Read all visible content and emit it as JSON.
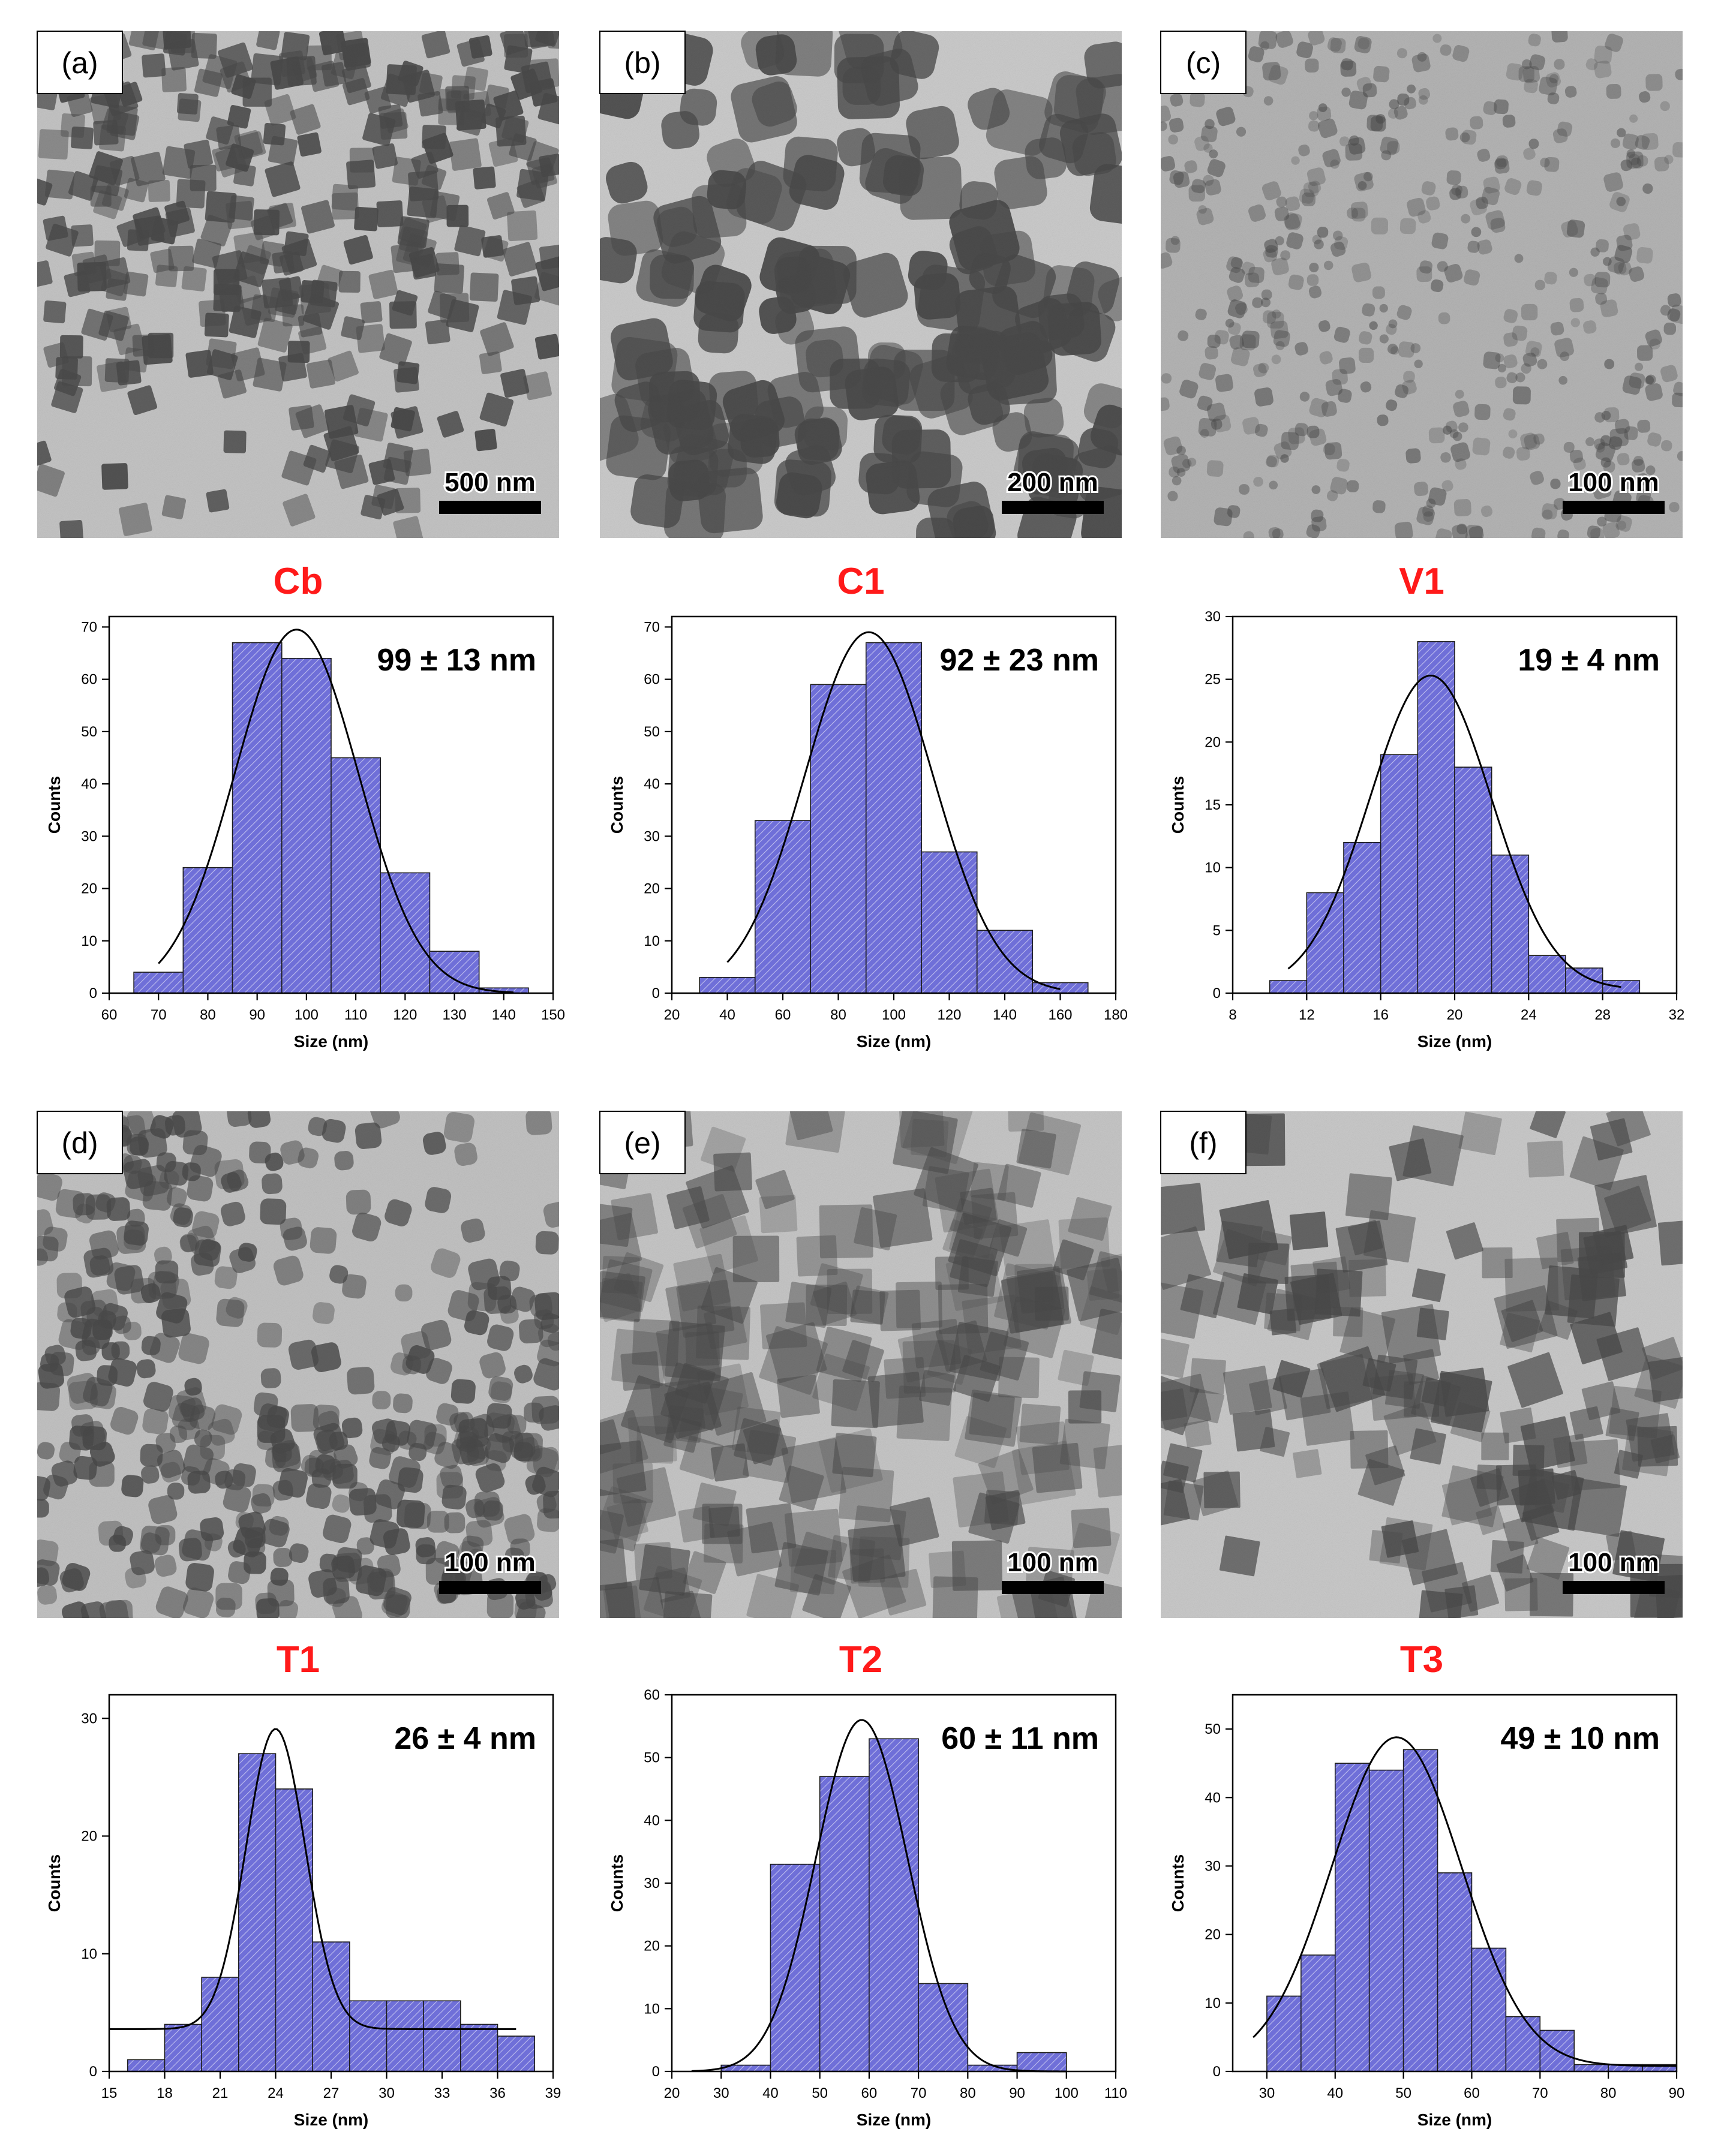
{
  "figure": {
    "axis_titles": {
      "x": "Size (nm)",
      "y": "Counts"
    },
    "colors": {
      "sample_label": "#ff1a1a",
      "bar_fill": "#6f6fd8",
      "bar_hatch": "#ffffff",
      "bar_edge": "#1c1c1c",
      "fit_line": "#000000",
      "axis": "#000000",
      "tem_background": "#b9b9b9",
      "tem_particle": "#4a4a4a"
    },
    "panels": [
      {
        "panel_label": "(a)",
        "sample": "Cb",
        "scale_bar": "500 nm",
        "tem_style": "large-cubes",
        "chart_data": {
          "type": "histogram-with-fit",
          "annotation": "99 ± 13 nm",
          "xlabel": "Size (nm)",
          "ylabel": "Counts",
          "xlim": [
            60,
            150
          ],
          "xticks": [
            60,
            70,
            80,
            90,
            100,
            110,
            120,
            130,
            140,
            150
          ],
          "ylim": [
            0,
            72
          ],
          "yticks": [
            0,
            10,
            20,
            30,
            40,
            50,
            60,
            70
          ],
          "bins": [
            [
              65,
              75,
              4
            ],
            [
              75,
              85,
              24
            ],
            [
              85,
              95,
              67
            ],
            [
              95,
              105,
              64
            ],
            [
              105,
              115,
              45
            ],
            [
              115,
              125,
              23
            ],
            [
              125,
              135,
              8
            ],
            [
              135,
              145,
              1
            ]
          ],
          "fit": {
            "center": 98,
            "sigma": 12.5,
            "amplitude": 69.5,
            "baseline": 0,
            "x_range": [
              70,
              142
            ]
          }
        }
      },
      {
        "panel_label": "(b)",
        "sample": "C1",
        "scale_bar": "200 nm",
        "tem_style": "rounded-cubes",
        "chart_data": {
          "type": "histogram-with-fit",
          "annotation": "92 ± 23 nm",
          "xlabel": "Size (nm)",
          "ylabel": "Counts",
          "xlim": [
            20,
            180
          ],
          "xticks": [
            20,
            40,
            60,
            80,
            100,
            120,
            140,
            160,
            180
          ],
          "ylim": [
            0,
            72
          ],
          "yticks": [
            0,
            10,
            20,
            30,
            40,
            50,
            60,
            70
          ],
          "bins": [
            [
              30,
              50,
              3
            ],
            [
              50,
              70,
              33
            ],
            [
              70,
              90,
              59
            ],
            [
              90,
              110,
              67
            ],
            [
              110,
              130,
              27
            ],
            [
              130,
              150,
              12
            ],
            [
              150,
              170,
              2
            ]
          ],
          "fit": {
            "center": 91,
            "sigma": 23,
            "amplitude": 69,
            "baseline": 0,
            "x_range": [
              40,
              160
            ]
          }
        }
      },
      {
        "panel_label": "(c)",
        "sample": "V1",
        "scale_bar": "100 nm",
        "tem_style": "fine-network",
        "chart_data": {
          "type": "histogram-with-fit",
          "annotation": "19 ± 4 nm",
          "xlabel": "Size (nm)",
          "ylabel": "Counts",
          "xlim": [
            8,
            32
          ],
          "xticks": [
            8,
            12,
            16,
            20,
            24,
            28,
            32
          ],
          "ylim": [
            0,
            30
          ],
          "yticks": [
            0,
            5,
            10,
            15,
            20,
            25,
            30
          ],
          "bins": [
            [
              10,
              12,
              1
            ],
            [
              12,
              14,
              8
            ],
            [
              14,
              16,
              12
            ],
            [
              16,
              18,
              19
            ],
            [
              18,
              20,
              28
            ],
            [
              20,
              22,
              18
            ],
            [
              22,
              24,
              11
            ],
            [
              24,
              26,
              3
            ],
            [
              26,
              28,
              2
            ],
            [
              28,
              30,
              1
            ]
          ],
          "fit": {
            "center": 18.7,
            "sigma": 3.3,
            "amplitude": 25,
            "baseline": 0.3,
            "x_range": [
              11,
              29
            ]
          }
        }
      },
      {
        "panel_label": "(d)",
        "sample": "T1",
        "scale_bar": "100 nm",
        "tem_style": "aggregated-small",
        "chart_data": {
          "type": "histogram-with-fit",
          "annotation": "26 ± 4 nm",
          "xlabel": "Size (nm)",
          "ylabel": "Counts",
          "xlim": [
            15,
            39
          ],
          "xticks": [
            15,
            18,
            21,
            24,
            27,
            30,
            33,
            36,
            39
          ],
          "ylim": [
            0,
            32
          ],
          "yticks": [
            0,
            10,
            20,
            30
          ],
          "bins": [
            [
              16,
              18,
              1
            ],
            [
              18,
              20,
              4
            ],
            [
              20,
              22,
              8
            ],
            [
              22,
              24,
              27
            ],
            [
              24,
              26,
              24
            ],
            [
              26,
              28,
              11
            ],
            [
              28,
              30,
              6
            ],
            [
              30,
              32,
              6
            ],
            [
              32,
              34,
              6
            ],
            [
              34,
              36,
              4
            ],
            [
              36,
              38,
              3
            ]
          ],
          "fit": {
            "center": 24,
            "sigma": 1.6,
            "amplitude": 25.5,
            "baseline": 3.6,
            "x_range": [
              15,
              37
            ]
          }
        }
      },
      {
        "panel_label": "(e)",
        "sample": "T2",
        "scale_bar": "100 nm",
        "tem_style": "translucent-cubes",
        "chart_data": {
          "type": "histogram-with-fit",
          "annotation": "60 ± 11 nm",
          "xlabel": "Size (nm)",
          "ylabel": "Counts",
          "xlim": [
            20,
            110
          ],
          "xticks": [
            20,
            30,
            40,
            50,
            60,
            70,
            80,
            90,
            100,
            110
          ],
          "ylim": [
            0,
            60
          ],
          "yticks": [
            0,
            10,
            20,
            30,
            40,
            50,
            60
          ],
          "bins": [
            [
              30,
              40,
              1
            ],
            [
              40,
              50,
              33
            ],
            [
              50,
              60,
              47
            ],
            [
              60,
              70,
              53
            ],
            [
              70,
              80,
              14
            ],
            [
              80,
              90,
              1
            ],
            [
              90,
              100,
              3
            ]
          ],
          "fit": {
            "center": 58.5,
            "sigma": 9.3,
            "amplitude": 56,
            "baseline": 0,
            "x_range": [
              24,
              100
            ]
          }
        }
      },
      {
        "panel_label": "(f)",
        "sample": "T3",
        "scale_bar": "100 nm",
        "tem_style": "sharp-cubes",
        "chart_data": {
          "type": "histogram-with-fit",
          "annotation": "49 ± 10 nm",
          "xlabel": "Size (nm)",
          "ylabel": "Counts",
          "xlim": [
            25,
            90
          ],
          "xticks": [
            30,
            40,
            50,
            60,
            70,
            80,
            90
          ],
          "ylim": [
            0,
            55
          ],
          "yticks": [
            0,
            10,
            20,
            30,
            40,
            50
          ],
          "bins": [
            [
              30,
              35,
              11
            ],
            [
              35,
              40,
              17
            ],
            [
              40,
              45,
              45
            ],
            [
              45,
              50,
              44
            ],
            [
              50,
              55,
              47
            ],
            [
              55,
              60,
              29
            ],
            [
              60,
              65,
              18
            ],
            [
              65,
              70,
              8
            ],
            [
              70,
              75,
              6
            ],
            [
              75,
              80,
              1
            ],
            [
              80,
              85,
              1
            ],
            [
              85,
              90,
              1
            ]
          ],
          "fit": {
            "center": 49,
            "sigma": 9.5,
            "amplitude": 48,
            "baseline": 0.8,
            "x_range": [
              28,
              90
            ]
          }
        }
      }
    ]
  }
}
